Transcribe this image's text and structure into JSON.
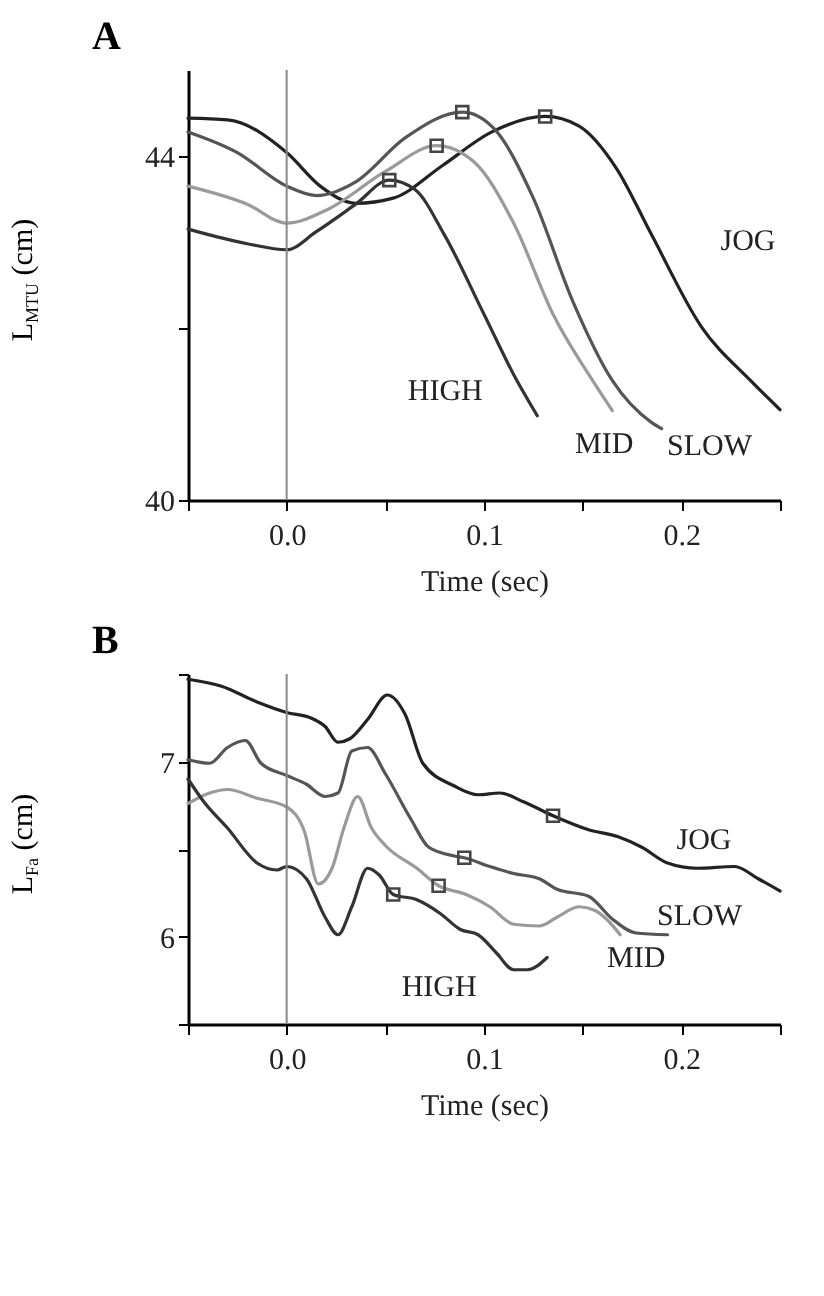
{
  "chart_data": [
    {
      "type": "line",
      "title": "A",
      "xlabel": "Time (sec)",
      "ylabel": "L$_{MTU}$ (cm)",
      "xlim": [
        -0.05,
        0.25
      ],
      "xticks": [
        {
          "value": -0.05,
          "label": null
        },
        {
          "value": 0,
          "label": "0.0"
        },
        {
          "value": 0.05,
          "label": null
        },
        {
          "value": 0.1,
          "label": "0.1"
        },
        {
          "value": 0.15,
          "label": null
        },
        {
          "value": 0.2,
          "label": "0.2"
        },
        {
          "value": 0.25,
          "label": null
        }
      ],
      "ylim": [
        40,
        45
      ],
      "yticks": [
        {
          "value": 40,
          "label": "40"
        },
        {
          "value": 42,
          "label": null
        },
        {
          "value": 44,
          "label": "44"
        }
      ],
      "ref_lines": [
        {
          "axis": "x",
          "value": 0,
          "color": "#888888"
        }
      ],
      "series": [
        {
          "name": "JOG",
          "color": "#222222",
          "x": [
            -0.05,
            -0.03,
            0,
            0.017,
            0.035,
            0.054,
            0.079,
            0.104,
            0.131,
            0.148,
            0.167,
            0.185,
            0.21,
            0.235,
            0.25
          ],
          "values": [
            44.44,
            44.42,
            44.04,
            43.65,
            43.45,
            43.51,
            43.89,
            44.28,
            44.46,
            44.35,
            43.86,
            43.08,
            42.02,
            41.39,
            41.05
          ]
        },
        {
          "name": "SLOW",
          "color": "#555555",
          "x": [
            -0.05,
            -0.025,
            0,
            0.015,
            0.035,
            0.06,
            0.089,
            0.105,
            0.125,
            0.145,
            0.165,
            0.185,
            0.19
          ],
          "values": [
            44.28,
            44.04,
            43.65,
            43.54,
            43.7,
            44.21,
            44.51,
            44.32,
            43.51,
            42.31,
            41.39,
            40.9,
            40.83
          ]
        },
        {
          "name": "MID",
          "color": "#9a9a9a",
          "x": [
            -0.05,
            -0.02,
            0,
            0.02,
            0.05,
            0.076,
            0.095,
            0.115,
            0.135,
            0.155,
            0.165
          ],
          "values": [
            43.65,
            43.44,
            43.22,
            43.37,
            43.82,
            44.12,
            43.93,
            43.22,
            42.16,
            41.39,
            41.04
          ]
        },
        {
          "name": "HIGH",
          "color": "#333333",
          "x": [
            -0.05,
            -0.02,
            0,
            0.015,
            0.035,
            0.052,
            0.065,
            0.08,
            0.1,
            0.115,
            0.127
          ],
          "values": [
            43.15,
            42.98,
            42.91,
            43.12,
            43.44,
            43.72,
            43.61,
            43.08,
            42.16,
            41.46,
            40.98
          ]
        },
        {
          "type": "scatter",
          "marker": "square",
          "color": "#444444",
          "x": [
            0.131,
            0.089,
            0.076,
            0.052
          ],
          "values": [
            44.46,
            44.51,
            44.12,
            43.72
          ]
        }
      ]
    },
    {
      "type": "line",
      "title": "B",
      "xlabel": "Time (sec)",
      "ylabel": "L$_{Fa}$ (cm)",
      "xlim": [
        -0.05,
        0.25
      ],
      "xticks": [
        {
          "value": -0.05,
          "label": null
        },
        {
          "value": 0,
          "label": "0.0"
        },
        {
          "value": 0.05,
          "label": null
        },
        {
          "value": 0.1,
          "label": "0.1"
        },
        {
          "value": 0.15,
          "label": null
        },
        {
          "value": 0.2,
          "label": "0.2"
        },
        {
          "value": 0.25,
          "label": null
        }
      ],
      "ylim": [
        5.5,
        7.5
      ],
      "yticks": [
        {
          "value": 5.5,
          "label": null
        },
        {
          "value": 6,
          "label": "6"
        },
        {
          "value": 6.5,
          "label": null
        },
        {
          "value": 7,
          "label": "7"
        },
        {
          "value": 7.5,
          "label": null
        }
      ],
      "ref_lines": [
        {
          "axis": "x",
          "value": 0,
          "color": "#888888"
        }
      ],
      "series": [
        {
          "name": "JOG",
          "color": "#222222",
          "x": [
            -0.05,
            -0.033,
            -0.015,
            0,
            0.012,
            0.0195,
            0.026,
            0.032,
            0.041,
            0.051,
            0.06,
            0.069,
            0.085,
            0.097,
            0.108,
            0.12,
            0.135,
            0.153,
            0.168,
            0.18,
            0.193,
            0.208,
            0.227,
            0.239,
            0.25
          ],
          "values": [
            7.47,
            7.43,
            7.34,
            7.28,
            7.25,
            7.2,
            7.11,
            7.13,
            7.24,
            7.38,
            7.27,
            6.99,
            6.86,
            6.81,
            6.82,
            6.77,
            6.69,
            6.61,
            6.57,
            6.51,
            6.42,
            6.39,
            6.4,
            6.33,
            6.26
          ]
        },
        {
          "name": "SLOW",
          "color": "#555555",
          "x": [
            -0.05,
            -0.039,
            -0.03,
            -0.021,
            -0.013,
            0,
            0.01,
            0.0195,
            0.026,
            0.033,
            0.041,
            0.05,
            0.063,
            0.072,
            0.085,
            0.09,
            0.103,
            0.115,
            0.128,
            0.137,
            0.153,
            0.165,
            0.177,
            0.193
          ],
          "values": [
            7.01,
            6.99,
            7.08,
            7.12,
            6.99,
            6.92,
            6.87,
            6.8,
            6.82,
            7.06,
            7.08,
            6.93,
            6.67,
            6.51,
            6.46,
            6.45,
            6.4,
            6.36,
            6.33,
            6.27,
            6.23,
            6.1,
            6.02,
            6.01
          ]
        },
        {
          "name": "MID",
          "color": "#9a9a9a",
          "x": [
            -0.05,
            -0.039,
            -0.03,
            -0.015,
            0,
            0.009,
            0.016,
            0.023,
            0.029,
            0.036,
            0.043,
            0.05,
            0.066,
            0.077,
            0.091,
            0.103,
            0.115,
            0.128,
            0.137,
            0.148,
            0.156,
            0.162,
            0.169
          ],
          "values": [
            6.76,
            6.82,
            6.84,
            6.79,
            6.74,
            6.6,
            6.3,
            6.39,
            6.62,
            6.8,
            6.62,
            6.52,
            6.39,
            6.29,
            6.24,
            6.17,
            6.07,
            6.06,
            6.11,
            6.17,
            6.15,
            6.1,
            6.01
          ]
        },
        {
          "name": "HIGH",
          "color": "#333333",
          "x": [
            -0.05,
            -0.042,
            -0.03,
            -0.015,
            -0.005,
            0,
            0.01,
            0.0195,
            0.026,
            0.033,
            0.041,
            0.047,
            0.054,
            0.066,
            0.078,
            0.088,
            0.097,
            0.106,
            0.115,
            0.122,
            0.132
          ],
          "values": [
            6.9,
            6.77,
            6.62,
            6.42,
            6.38,
            6.4,
            6.33,
            6.11,
            6.01,
            6.17,
            6.39,
            6.35,
            6.24,
            6.21,
            6.13,
            6.04,
            6.01,
            5.91,
            5.81,
            5.81,
            5.88
          ]
        },
        {
          "type": "scatter",
          "marker": "square",
          "color": "#444444",
          "x": [
            0.135,
            0.09,
            0.077,
            0.054
          ],
          "values": [
            6.69,
            6.45,
            6.29,
            6.24
          ]
        }
      ]
    }
  ]
}
